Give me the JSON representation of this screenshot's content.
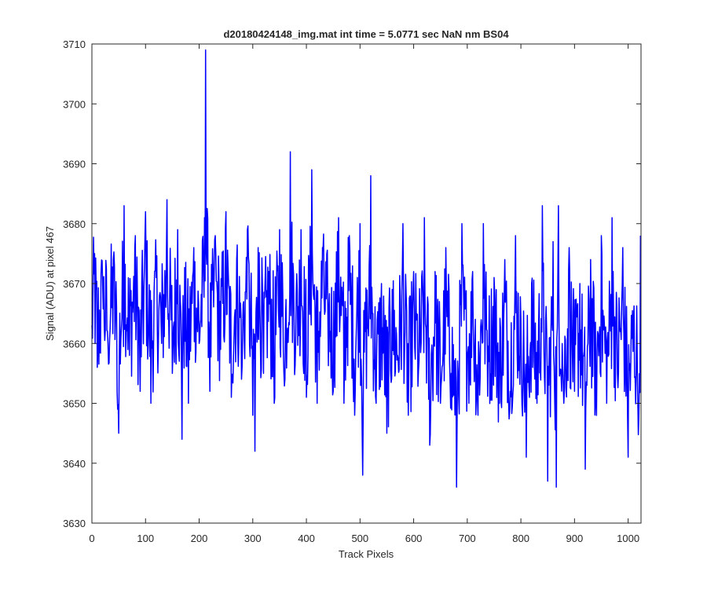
{
  "chart_data": {
    "type": "line",
    "title": "d20180424148_img.mat int time = 5.0771 sec  NaN nm BS04",
    "xlabel": "Track Pixels",
    "ylabel": "Signal (ADU) at pixel 467",
    "xlim": [
      0,
      1024
    ],
    "ylim": [
      3630,
      3710
    ],
    "xticks": [
      0,
      100,
      200,
      300,
      400,
      500,
      600,
      700,
      800,
      900,
      1000
    ],
    "yticks": [
      3630,
      3640,
      3650,
      3660,
      3670,
      3680,
      3690,
      3700,
      3710
    ],
    "xtick_labels": [
      "0",
      "100",
      "200",
      "300",
      "400",
      "500",
      "600",
      "700",
      "800",
      "900",
      "1000"
    ],
    "ytick_labels": [
      "3630",
      "3640",
      "3650",
      "3660",
      "3670",
      "3680",
      "3690",
      "3700",
      "3710"
    ],
    "grid": false,
    "series": [
      {
        "color": "#0000ff",
        "description": "per-pixel noise signal, 1024 points; values below are local envelope samples",
        "x": [
          0,
          5,
          10,
          20,
          30,
          40,
          48,
          50,
          60,
          70,
          80,
          90,
          100,
          110,
          120,
          130,
          140,
          150,
          160,
          168,
          170,
          180,
          190,
          200,
          210,
          212,
          220,
          230,
          240,
          250,
          260,
          270,
          280,
          290,
          300,
          304,
          310,
          320,
          330,
          340,
          350,
          360,
          370,
          380,
          390,
          400,
          410,
          420,
          430,
          440,
          450,
          460,
          470,
          480,
          490,
          500,
          505,
          510,
          520,
          530,
          540,
          550,
          560,
          570,
          580,
          590,
          600,
          610,
          620,
          630,
          640,
          650,
          660,
          670,
          680,
          690,
          700,
          710,
          720,
          730,
          740,
          750,
          760,
          770,
          780,
          790,
          800,
          810,
          820,
          830,
          840,
          850,
          860,
          866,
          870,
          880,
          890,
          900,
          910,
          920,
          930,
          940,
          950,
          960,
          970,
          980,
          990,
          1000,
          1010,
          1020,
          1023
        ],
        "y": [
          3663,
          3675,
          3656,
          3670,
          3660,
          3674,
          3649,
          3645,
          3683,
          3658,
          3676,
          3652,
          3682,
          3650,
          3671,
          3660,
          3684,
          3655,
          3679,
          3644,
          3668,
          3650,
          3676,
          3660,
          3681,
          3709,
          3652,
          3678,
          3659,
          3682,
          3651,
          3674,
          3656,
          3679,
          3648,
          3642,
          3676,
          3655,
          3672,
          3650,
          3679,
          3654,
          3692,
          3660,
          3679,
          3651,
          3689,
          3650,
          3676,
          3665,
          3652,
          3681,
          3650,
          3678,
          3648,
          3680,
          3638,
          3662,
          3688,
          3650,
          3670,
          3645,
          3669,
          3658,
          3680,
          3648,
          3672,
          3657,
          3681,
          3643,
          3672,
          3650,
          3676,
          3655,
          3636,
          3680,
          3658,
          3672,
          3648,
          3680,
          3657,
          3671,
          3650,
          3674,
          3652,
          3678,
          3664,
          3641,
          3670,
          3650,
          3683,
          3637,
          3677,
          3636,
          3683,
          3650,
          3676,
          3652,
          3670,
          3639,
          3674,
          3650,
          3678,
          3650,
          3681,
          3655,
          3676,
          3641,
          3664,
          3648,
          3678
        ]
      }
    ]
  }
}
